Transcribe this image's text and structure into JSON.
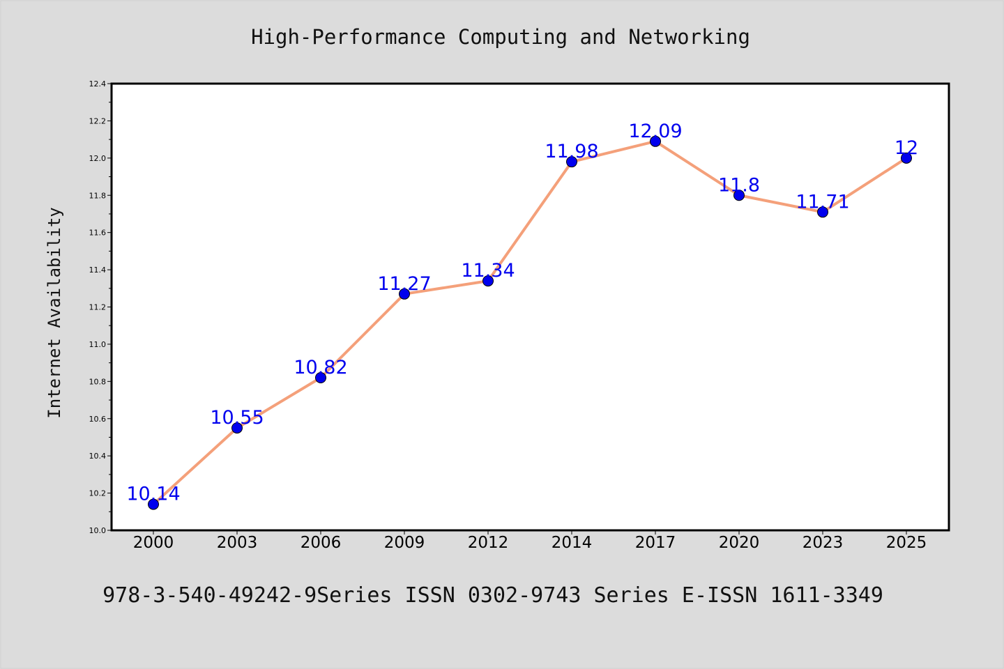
{
  "chart_data": {
    "type": "line",
    "title": "High-Performance Computing and Networking",
    "xlabel": "",
    "ylabel": "Internet Availability",
    "footer": "978-3-540-49242-9Series ISSN 0302-9743 Series E-ISSN 1611-3349",
    "categories": [
      "2000",
      "2003",
      "2006",
      "2009",
      "2012",
      "2014",
      "2017",
      "2020",
      "2023",
      "2025"
    ],
    "series": [
      {
        "values": [
          10.14,
          10.55,
          10.82,
          11.27,
          11.34,
          11.98,
          12.09,
          11.8,
          11.71,
          12
        ],
        "data_labels": [
          "10.14",
          "10.55",
          "10.82",
          "11.27",
          "11.34",
          "11.98",
          "12.09",
          "11.8",
          "11.71",
          "12"
        ],
        "line_color": "#f4a07a",
        "marker_color": "#0000ee"
      }
    ],
    "ylim": [
      10.0,
      12.4
    ],
    "yticks": [
      "10.0",
      "10.2",
      "10.4",
      "10.6",
      "10.8",
      "11.0",
      "11.2",
      "11.4",
      "11.6",
      "11.8",
      "12.0",
      "12.2",
      "12.4"
    ],
    "grid": false,
    "legend": "none",
    "colors": {
      "background": "#dcdcdc",
      "plot_background": "#ffffff",
      "label_color": "#0000ee"
    }
  }
}
